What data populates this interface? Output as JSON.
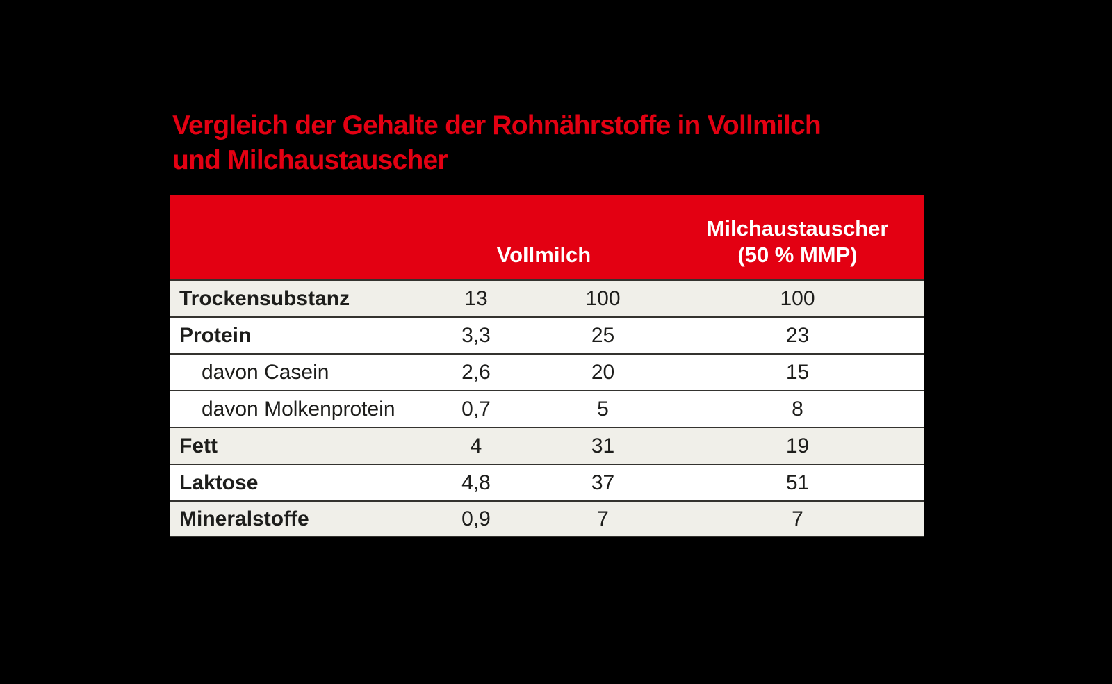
{
  "title": {
    "line1": "Vergleich der Gehalte der Rohnährstoffe in Vollmilch",
    "line2": "und Milchaustauscher"
  },
  "table": {
    "header": {
      "vollmilch": "Vollmilch",
      "milchaustauscher_line1": "Milchaustauscher",
      "milchaustauscher_line2": "(50 % MMP)"
    },
    "rows": [
      {
        "label": "Trockensubstanz",
        "emphasis": true,
        "indent": false,
        "shaded": true,
        "values": [
          "13",
          "100",
          "100"
        ]
      },
      {
        "label": "Protein",
        "emphasis": true,
        "indent": false,
        "shaded": false,
        "values": [
          "3,3",
          "25",
          "23"
        ]
      },
      {
        "label": "davon Casein",
        "emphasis": false,
        "indent": true,
        "shaded": false,
        "values": [
          "2,6",
          "20",
          "15"
        ]
      },
      {
        "label": "davon Molkenprotein",
        "emphasis": false,
        "indent": true,
        "shaded": false,
        "values": [
          "0,7",
          "5",
          "8"
        ]
      },
      {
        "label": "Fett",
        "emphasis": true,
        "indent": false,
        "shaded": true,
        "values": [
          "4",
          "31",
          "19"
        ]
      },
      {
        "label": "Laktose",
        "emphasis": true,
        "indent": false,
        "shaded": false,
        "values": [
          "4,8",
          "37",
          "51"
        ]
      },
      {
        "label": "Mineralstoffe",
        "emphasis": true,
        "indent": false,
        "shaded": true,
        "values": [
          "0,9",
          "7",
          "7"
        ]
      }
    ]
  },
  "colors": {
    "accent_red": "#e30012",
    "header_text": "#ffffff",
    "body_text": "#1d1d1b",
    "row_shade": "#f0efe9",
    "row_white": "#ffffff",
    "separator": "#34332f",
    "background": "#000000"
  },
  "chart_data": {
    "type": "table",
    "title": "Vergleich der Gehalte der Rohnährstoffe in Vollmilch und Milchaustauscher",
    "header_layout": [
      {
        "label": "",
        "columns": 2
      },
      {
        "label": "Vollmilch",
        "columns": 1,
        "note": "group header spanning the two middle numeric columns"
      },
      {
        "label": "Milchaustauscher (50 % MMP)",
        "columns": 1
      }
    ],
    "rows": [
      {
        "label": "Trockensubstanz",
        "values": [
          13,
          100,
          100
        ]
      },
      {
        "label": "Protein",
        "values": [
          3.3,
          25,
          23
        ]
      },
      {
        "label": "davon Casein",
        "values": [
          2.6,
          20,
          15
        ]
      },
      {
        "label": "davon Molkenprotein",
        "values": [
          0.7,
          5,
          8
        ]
      },
      {
        "label": "Fett",
        "values": [
          4,
          31,
          19
        ]
      },
      {
        "label": "Laktose",
        "values": [
          4.8,
          37,
          51
        ]
      },
      {
        "label": "Mineralstoffe",
        "values": [
          0.9,
          7,
          7
        ]
      }
    ]
  }
}
